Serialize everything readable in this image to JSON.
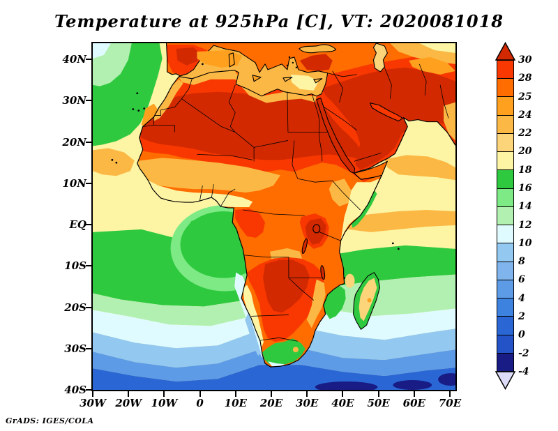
{
  "title": "Temperature at 925hPa [C], VT: 2020081018",
  "credit": "GrADS: IGES/COLA",
  "axes": {
    "lat_labels": [
      "40N",
      "30N",
      "20N",
      "10N",
      "EQ",
      "10S",
      "20S",
      "30S",
      "40S"
    ],
    "lon_labels": [
      "30W",
      "20W",
      "10W",
      "0",
      "10E",
      "20E",
      "30E",
      "40E",
      "50E",
      "60E",
      "70E"
    ]
  },
  "colorbar": {
    "labels": [
      "30",
      "28",
      "25",
      "24",
      "22",
      "20",
      "18",
      "16",
      "14",
      "12",
      "10",
      "8",
      "6",
      "4",
      "2",
      "0",
      "-2",
      "-4"
    ],
    "band_colors": [
      "#f83800",
      "#ff6c00",
      "#ffa01e",
      "#fcb844",
      "#fcd479",
      "#fdf4a4",
      "#2fc93f",
      "#7dea85",
      "#b2f0b2",
      "#e0fbff",
      "#93c8f0",
      "#7fb4ec",
      "#5e9be6",
      "#3d82df",
      "#2a67d4",
      "#2353c6",
      "#181c84"
    ],
    "arrow_top_color": "#d22900",
    "arrow_bottom_color": "#dcdcf8"
  },
  "palette": {
    "dark_red": "#d22900",
    "red": "#f83800",
    "orange": "#ff6c00",
    "orange2": "#ffa01e",
    "amber": "#fcb844",
    "light_amber": "#fcd479",
    "pale_yellow": "#fdf4a4",
    "green": "#2fc93f",
    "light_green": "#7dea85",
    "pale_green": "#b2f0b2",
    "pale_cyan": "#e0fbff",
    "light_blue": "#93c8f0",
    "mid_blue": "#5e9be6",
    "deep_blue": "#2a67d4",
    "navy": "#181c84",
    "below_min": "#dcdcf8"
  },
  "chart_data": {
    "type": "heatmap",
    "title": "Temperature at 925hPa [C], VT: 2020081018",
    "variable": "Air temperature",
    "level_hPa": 925,
    "units": "C",
    "valid_time": "2020081018",
    "projection": "lat-lon map of Africa and surroundings",
    "x": {
      "label": "longitude",
      "tick_labels": [
        "30W",
        "20W",
        "10W",
        "0",
        "10E",
        "20E",
        "30E",
        "40E",
        "50E",
        "60E",
        "70E"
      ],
      "range_deg": [
        -30,
        72
      ]
    },
    "y": {
      "label": "latitude",
      "tick_labels": [
        "40N",
        "30N",
        "20N",
        "10N",
        "EQ",
        "10S",
        "20S",
        "30S",
        "40S"
      ],
      "range_deg": [
        -40,
        44
      ]
    },
    "contour_levels": [
      -4,
      -2,
      0,
      2,
      4,
      6,
      8,
      10,
      12,
      14,
      16,
      18,
      20,
      22,
      24,
      25,
      28,
      30
    ],
    "legend_position": "right vertical colorbar with over/under arrows",
    "grid": false,
    "approx_values_by_region": [
      {
        "region": "Sahara desert and Arabian Peninsula interior",
        "value_C": ">30"
      },
      {
        "region": "Iberia and Anatolia hot patches",
        "value_C": "28-30"
      },
      {
        "region": "Sahel and Central Africa",
        "value_C": "24-28"
      },
      {
        "region": "Guinea coast and Mediterranean Sea",
        "value_C": "20-24"
      },
      {
        "region": "Angola-Zambia-Botswana interior",
        "value_C": "28-30"
      },
      {
        "region": "NE Atlantic off Morocco / Canary region",
        "value_C": "16-18"
      },
      {
        "region": "Gulf of Guinea cold pool",
        "value_C": "16-18"
      },
      {
        "region": "Namibian coastal upwelling tongue",
        "value_C": "8-12"
      },
      {
        "region": "Cape region of South Africa",
        "value_C": "12-18"
      },
      {
        "region": "South Atlantic near 40S",
        "value_C": "-2 to 4"
      },
      {
        "region": "South Indian Ocean near 40S",
        "value_C": "-4 to 0"
      },
      {
        "region": "Arabian Sea",
        "value_C": "18-22"
      }
    ]
  }
}
